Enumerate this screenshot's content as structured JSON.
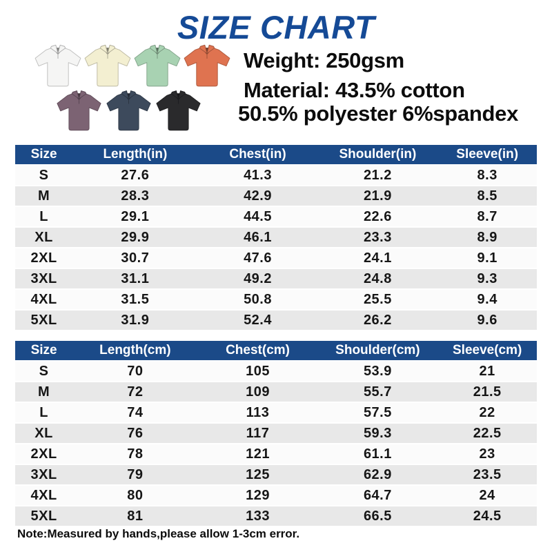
{
  "title": "SIZE CHART",
  "colors": {
    "accent_blue": "#154a96",
    "header_blue": "#1b4a88",
    "row_light": "#fbfbfb",
    "row_dark": "#e8e8e8"
  },
  "product": {
    "weight_line": "Weight: 250gsm",
    "material_line1": "Material: 43.5% cotton",
    "material_line2": "50.5% polyester 6%spandex",
    "shirts": [
      {
        "name": "white",
        "hex": "#f5f5f4"
      },
      {
        "name": "cream",
        "hex": "#f3efd1"
      },
      {
        "name": "mint",
        "hex": "#a8d2b2"
      },
      {
        "name": "orange",
        "hex": "#df7350"
      },
      {
        "name": "purple",
        "hex": "#7c6373"
      },
      {
        "name": "navy",
        "hex": "#3d4a5c"
      },
      {
        "name": "black",
        "hex": "#2a2a2c"
      }
    ]
  },
  "tables": [
    {
      "id": "inches",
      "headers": [
        "Size",
        "Length(in)",
        "Chest(in)",
        "Shoulder(in)",
        "Sleeve(in)"
      ],
      "rows": [
        [
          "S",
          "27.6",
          "41.3",
          "21.2",
          "8.3"
        ],
        [
          "M",
          "28.3",
          "42.9",
          "21.9",
          "8.5"
        ],
        [
          "L",
          "29.1",
          "44.5",
          "22.6",
          "8.7"
        ],
        [
          "XL",
          "29.9",
          "46.1",
          "23.3",
          "8.9"
        ],
        [
          "2XL",
          "30.7",
          "47.6",
          "24.1",
          "9.1"
        ],
        [
          "3XL",
          "31.1",
          "49.2",
          "24.8",
          "9.3"
        ],
        [
          "4XL",
          "31.5",
          "50.8",
          "25.5",
          "9.4"
        ],
        [
          "5XL",
          "31.9",
          "52.4",
          "26.2",
          "9.6"
        ]
      ]
    },
    {
      "id": "cm",
      "headers": [
        "Size",
        "Length(cm)",
        "Chest(cm)",
        "Shoulder(cm)",
        "Sleeve(cm)"
      ],
      "rows": [
        [
          "S",
          "70",
          "105",
          "53.9",
          "21"
        ],
        [
          "M",
          "72",
          "109",
          "55.7",
          "21.5"
        ],
        [
          "L",
          "74",
          "113",
          "57.5",
          "22"
        ],
        [
          "XL",
          "76",
          "117",
          "59.3",
          "22.5"
        ],
        [
          "2XL",
          "78",
          "121",
          "61.1",
          "23"
        ],
        [
          "3XL",
          "79",
          "125",
          "62.9",
          "23.5"
        ],
        [
          "4XL",
          "80",
          "129",
          "64.7",
          "24"
        ],
        [
          "5XL",
          "81",
          "133",
          "66.5",
          "24.5"
        ]
      ]
    }
  ],
  "note": "Note:Measured by hands,please allow 1-3cm error."
}
